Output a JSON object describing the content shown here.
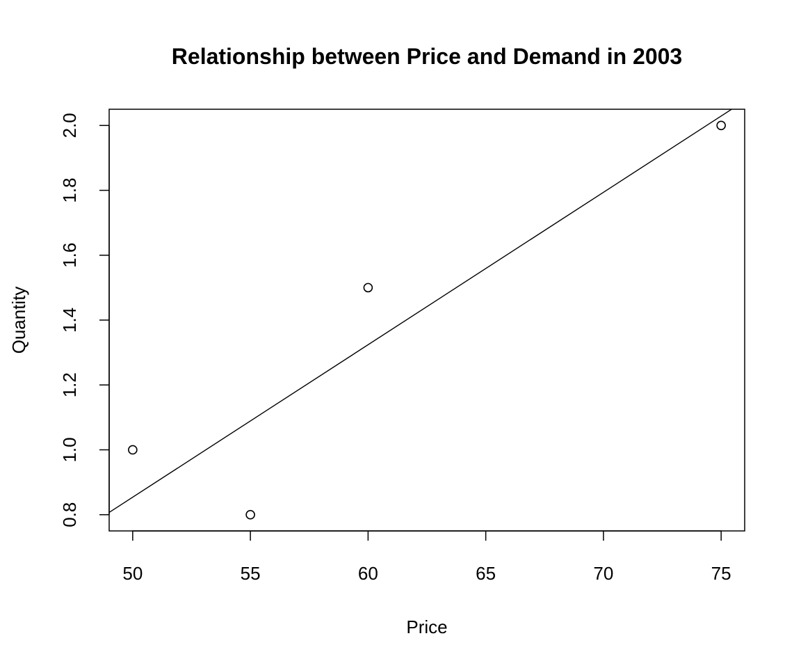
{
  "chart_data": {
    "type": "scatter",
    "title": "Relationship between Price and Demand in 2003",
    "xlabel": "Price",
    "ylabel": "Quantity",
    "xlim": [
      49,
      76
    ],
    "ylim": [
      0.75,
      2.05
    ],
    "x_ticks": [
      50,
      55,
      60,
      65,
      70,
      75
    ],
    "y_ticks": [
      0.8,
      1.0,
      1.2,
      1.4,
      1.6,
      1.8,
      2.0
    ],
    "x_tick_labels": [
      "50",
      "55",
      "60",
      "65",
      "70",
      "75"
    ],
    "y_tick_labels": [
      "0.8",
      "1.0",
      "1.2",
      "1.4",
      "1.6",
      "1.8",
      "2.0"
    ],
    "series": [
      {
        "x": [
          50,
          55,
          60,
          75
        ],
        "y": [
          1.0,
          0.8,
          1.5,
          2.0
        ]
      }
    ],
    "fit_line": {
      "intercept": -1.496,
      "slope": 0.047
    },
    "grid": false,
    "legend": "none"
  }
}
